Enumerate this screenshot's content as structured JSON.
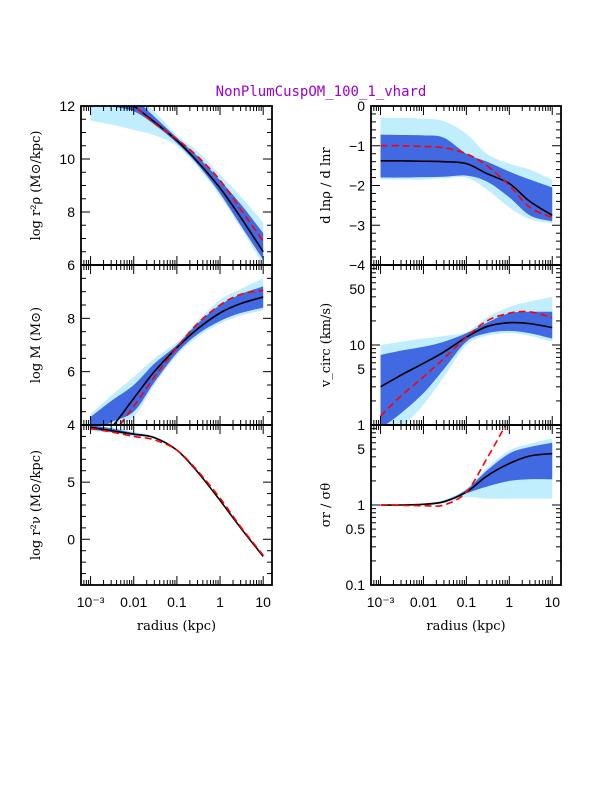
{
  "title": "NonPlumCuspOM_100_1_vhard",
  "colors": {
    "inner_band": "#4169e1",
    "outer_band": "#c1eefc",
    "median_line": "#000000",
    "model_line": "#ff0000",
    "title": "#9a00d0"
  },
  "chart_data": [
    {
      "type": "line",
      "ylabel": "log r²ρ (M⊙/kpc)",
      "xlabel": "",
      "xscale": "log",
      "yscale": "linear",
      "xlim": [
        0.0006,
        16
      ],
      "ylim": [
        6,
        12
      ],
      "yticks": [
        "6",
        "8",
        "10",
        "12"
      ],
      "yticks_values": [
        6,
        8,
        10,
        12
      ],
      "yminor_step": 0.5,
      "xticks": [],
      "grid": false,
      "x": [
        0.001,
        0.003,
        0.01,
        0.03,
        0.1,
        0.3,
        1,
        3,
        10
      ],
      "median": [
        13.3,
        12.6,
        12.0,
        11.4,
        10.7,
        9.9,
        8.9,
        7.8,
        6.5
      ],
      "model": [
        13.0,
        12.5,
        12.0,
        11.35,
        10.75,
        10.1,
        9.2,
        8.1,
        6.9
      ],
      "inner_band": [
        [
          12.3,
          13.5
        ],
        [
          12.0,
          12.9
        ],
        [
          11.8,
          12.3
        ],
        [
          11.3,
          11.6
        ],
        [
          10.6,
          10.8
        ],
        [
          9.8,
          10.1
        ],
        [
          8.7,
          9.2
        ],
        [
          7.5,
          8.3
        ],
        [
          6.2,
          7.2
        ]
      ],
      "outer_band": [
        [
          11.45,
          13.6
        ],
        [
          11.3,
          13.0
        ],
        [
          11.1,
          12.5
        ],
        [
          10.9,
          11.8
        ],
        [
          10.5,
          10.9
        ],
        [
          9.7,
          10.3
        ],
        [
          8.6,
          9.4
        ],
        [
          7.4,
          8.6
        ],
        [
          6.0,
          7.6
        ]
      ]
    },
    {
      "type": "line",
      "ylabel": "log M (M⊙)",
      "xlabel": "",
      "xscale": "log",
      "yscale": "linear",
      "xlim": [
        0.0006,
        16
      ],
      "ylim": [
        4,
        10
      ],
      "yticks": [
        "4",
        "6",
        "8"
      ],
      "yticks_values": [
        4,
        6,
        8
      ],
      "yminor_step": 0.5,
      "xticks": [],
      "grid": false,
      "x": [
        0.001,
        0.003,
        0.01,
        0.03,
        0.1,
        0.3,
        1,
        3,
        10
      ],
      "median": [
        3.3,
        3.9,
        5.0,
        6.0,
        6.9,
        7.6,
        8.2,
        8.55,
        8.8
      ],
      "model": [
        2.8,
        3.6,
        4.7,
        5.8,
        6.9,
        7.8,
        8.5,
        8.9,
        9.05
      ],
      "inner_band": [
        [
          3.6,
          4.3
        ],
        [
          4.1,
          4.9
        ],
        [
          4.5,
          5.5
        ],
        [
          5.6,
          6.3
        ],
        [
          6.7,
          7.0
        ],
        [
          7.4,
          7.8
        ],
        [
          7.9,
          8.5
        ],
        [
          8.2,
          8.9
        ],
        [
          8.4,
          9.2
        ]
      ],
      "outer_band": [
        [
          3.5,
          4.4
        ],
        [
          3.9,
          5.1
        ],
        [
          4.3,
          5.8
        ],
        [
          5.5,
          6.5
        ],
        [
          6.6,
          7.1
        ],
        [
          7.3,
          7.9
        ],
        [
          7.8,
          8.7
        ],
        [
          8.1,
          9.1
        ],
        [
          8.3,
          9.5
        ]
      ]
    },
    {
      "type": "line",
      "ylabel": "log r²ν (M⊙/kpc)",
      "xlabel": "radius (kpc)",
      "xscale": "log",
      "yscale": "linear",
      "xlim": [
        0.0006,
        16
      ],
      "ylim": [
        -4,
        10
      ],
      "yticks": [
        "0",
        "5"
      ],
      "yticks_values": [
        0,
        5
      ],
      "yminor_step": 1,
      "xticks": [
        "10⁻³",
        "0.01",
        "0.1",
        "1",
        "10"
      ],
      "xticks_values": [
        0.001,
        0.01,
        0.1,
        1,
        10
      ],
      "grid": false,
      "x": [
        0.001,
        0.003,
        0.01,
        0.03,
        0.1,
        0.3,
        1,
        3,
        10
      ],
      "median": [
        9.8,
        9.5,
        9.2,
        8.9,
        7.8,
        5.9,
        3.4,
        1.0,
        -1.5
      ],
      "model": [
        9.7,
        9.4,
        9.0,
        8.7,
        7.8,
        6.0,
        3.6,
        1.1,
        -1.4
      ],
      "inner_band": [
        [
          9.6,
          10.0
        ],
        [
          9.4,
          9.7
        ],
        [
          9.1,
          9.3
        ],
        [
          8.85,
          8.95
        ],
        [
          7.75,
          7.85
        ],
        [
          5.85,
          5.95
        ],
        [
          3.35,
          3.45
        ],
        [
          0.95,
          1.05
        ],
        [
          -1.55,
          -1.45
        ]
      ],
      "outer_band": [
        [
          9.5,
          10.0
        ],
        [
          9.3,
          9.8
        ],
        [
          9.0,
          9.4
        ],
        [
          8.8,
          9.0
        ],
        [
          7.72,
          7.88
        ],
        [
          5.82,
          5.98
        ],
        [
          3.32,
          3.48
        ],
        [
          0.92,
          1.08
        ],
        [
          -1.58,
          -1.42
        ]
      ]
    },
    {
      "type": "line",
      "ylabel": "d lnρ / d lnr",
      "xlabel": "",
      "xscale": "log",
      "yscale": "linear",
      "xlim": [
        0.0006,
        16
      ],
      "ylim": [
        -4,
        0
      ],
      "yticks": [
        "0",
        "−1",
        "−2",
        "−3",
        "−4"
      ],
      "yticks_values": [
        0,
        -1,
        -2,
        -3,
        -4
      ],
      "yminor_step": 0.2,
      "xticks": [],
      "grid": false,
      "x": [
        0.001,
        0.003,
        0.01,
        0.03,
        0.1,
        0.3,
        1,
        3,
        10
      ],
      "median": [
        -1.38,
        -1.38,
        -1.39,
        -1.4,
        -1.45,
        -1.7,
        -1.95,
        -2.4,
        -2.75
      ],
      "model": [
        -1.0,
        -1.0,
        -1.02,
        -1.05,
        -1.2,
        -1.5,
        -2.0,
        -2.55,
        -2.8
      ],
      "inner_band": [
        [
          -1.8,
          -0.72
        ],
        [
          -1.8,
          -0.73
        ],
        [
          -1.79,
          -0.74
        ],
        [
          -1.78,
          -0.8
        ],
        [
          -1.75,
          -1.2
        ],
        [
          -1.9,
          -1.4
        ],
        [
          -2.3,
          -1.65
        ],
        [
          -2.75,
          -1.85
        ],
        [
          -2.9,
          -2.05
        ]
      ],
      "outer_band": [
        [
          -1.85,
          -0.3
        ],
        [
          -1.85,
          -0.3
        ],
        [
          -1.85,
          -0.32
        ],
        [
          -1.82,
          -0.38
        ],
        [
          -1.8,
          -0.7
        ],
        [
          -2.1,
          -1.2
        ],
        [
          -2.55,
          -1.45
        ],
        [
          -2.85,
          -1.6
        ],
        [
          -2.95,
          -1.85
        ]
      ]
    },
    {
      "type": "line",
      "ylabel": "v_circ (km/s)",
      "xlabel": "",
      "xscale": "log",
      "yscale": "log",
      "xlim": [
        0.0006,
        16
      ],
      "ylim": [
        1,
        100
      ],
      "yticks": [
        "1",
        "5",
        "10",
        "50"
      ],
      "yticks_values": [
        1,
        5,
        10,
        50
      ],
      "xticks": [],
      "grid": false,
      "x": [
        0.001,
        0.003,
        0.01,
        0.03,
        0.1,
        0.3,
        1,
        3,
        10
      ],
      "median": [
        3.0,
        4.2,
        5.9,
        8.2,
        12.5,
        17,
        19,
        18.5,
        16.5
      ],
      "model": [
        1.3,
        2.3,
        4.0,
        6.8,
        12.5,
        20,
        25,
        26,
        22
      ],
      "inner_band": [
        [
          0.9,
          7.5
        ],
        [
          1.4,
          8.5
        ],
        [
          2.5,
          9.5
        ],
        [
          5.0,
          11
        ],
        [
          11,
          14
        ],
        [
          14,
          19
        ],
        [
          15,
          25
        ],
        [
          14,
          26
        ],
        [
          12,
          26
        ]
      ],
      "outer_band": [
        [
          0.5,
          10
        ],
        [
          0.9,
          11
        ],
        [
          1.8,
          12
        ],
        [
          4.0,
          13
        ],
        [
          10,
          14.5
        ],
        [
          13,
          22
        ],
        [
          14,
          30
        ],
        [
          13,
          35
        ],
        [
          11,
          40
        ]
      ]
    },
    {
      "type": "line",
      "ylabel": "σr / σθ",
      "xlabel": "radius (kpc)",
      "xscale": "log",
      "yscale": "log",
      "xlim": [
        0.0006,
        16
      ],
      "ylim": [
        0.1,
        10
      ],
      "yticks": [
        "0.1",
        "0.5",
        "1",
        "5"
      ],
      "yticks_values": [
        0.1,
        0.5,
        1,
        5
      ],
      "xticks": [
        "10⁻³",
        "0.01",
        "0.1",
        "1",
        "10"
      ],
      "xticks_values": [
        0.001,
        0.01,
        0.1,
        1,
        10
      ],
      "grid": false,
      "x": [
        0.001,
        0.003,
        0.01,
        0.03,
        0.1,
        0.3,
        1,
        3,
        10
      ],
      "median": [
        1.0,
        1.0,
        1.02,
        1.1,
        1.45,
        2.3,
        3.3,
        4.1,
        4.4
      ],
      "model": [
        1.0,
        0.99,
        0.98,
        1.0,
        1.45,
        3.8,
        12,
        null,
        null
      ],
      "inner_band": [
        [
          0.99,
          1.01
        ],
        [
          0.99,
          1.01
        ],
        [
          1.0,
          1.04
        ],
        [
          1.07,
          1.13
        ],
        [
          1.4,
          1.55
        ],
        [
          1.7,
          2.7
        ],
        [
          2.0,
          4.4
        ],
        [
          2.1,
          5.3
        ],
        [
          2.1,
          6.0
        ]
      ],
      "outer_band": [
        [
          0.98,
          1.02
        ],
        [
          0.98,
          1.02
        ],
        [
          0.99,
          1.05
        ],
        [
          1.05,
          1.15
        ],
        [
          1.25,
          1.6
        ],
        [
          1.2,
          2.9
        ],
        [
          1.2,
          4.8
        ],
        [
          1.2,
          5.8
        ],
        [
          1.2,
          6.8
        ]
      ]
    }
  ]
}
